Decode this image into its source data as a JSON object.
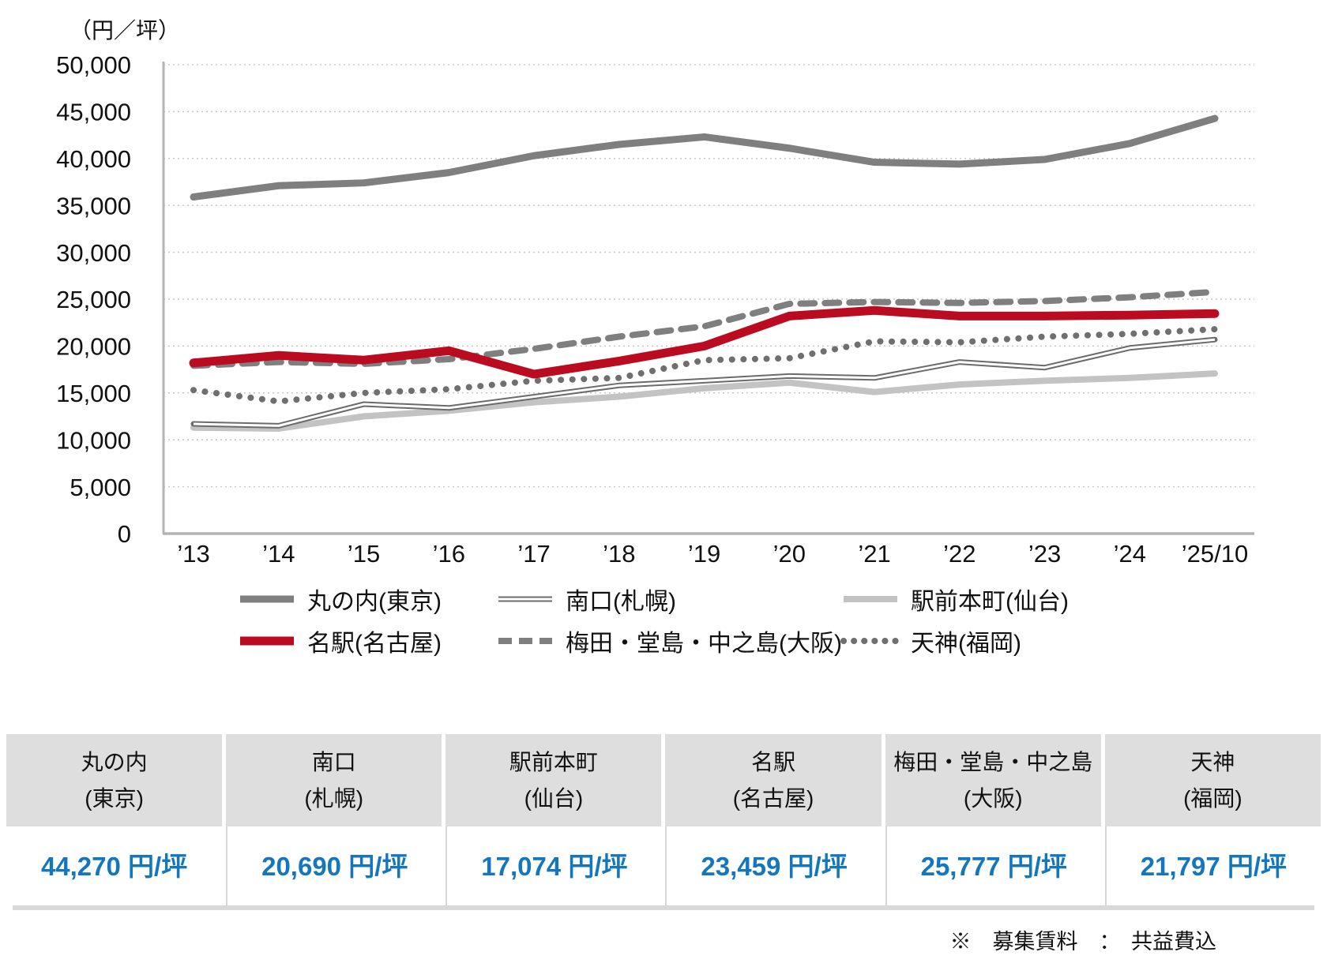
{
  "chart_data": {
    "type": "line",
    "unit_label": "（円／坪）",
    "categories": [
      "’13",
      "’14",
      "’15",
      "’16",
      "’17",
      "’18",
      "’19",
      "’20",
      "’21",
      "’22",
      "’23",
      "’24",
      "’25/10"
    ],
    "ylim": [
      0,
      50000
    ],
    "ytick_step": 5000,
    "ytick_labels": [
      "0",
      "5,000",
      "10,000",
      "15,000",
      "20,000",
      "25,000",
      "30,000",
      "35,000",
      "40,000",
      "45,000",
      "50,000"
    ],
    "grid": "horizontal-dotted",
    "legend_position": "bottom",
    "axis_color": "#b3b3b3",
    "grid_color": "#c9c9c9",
    "series": [
      {
        "name": "丸の内(東京)",
        "style": {
          "line": "solid",
          "width": 9,
          "color": "#7f7f7f"
        },
        "values": [
          35900,
          37100,
          37400,
          38500,
          40300,
          41500,
          42300,
          41100,
          39600,
          39400,
          39900,
          41600,
          44270
        ]
      },
      {
        "name": "南口(札幌)",
        "style": {
          "line": "double",
          "width": 7,
          "color": "#6b6b6b"
        },
        "values": [
          11700,
          11500,
          13800,
          13400,
          14600,
          15800,
          16300,
          16800,
          16600,
          18300,
          17700,
          19800,
          20690
        ]
      },
      {
        "name": "駅前本町(仙台)",
        "style": {
          "line": "solid",
          "width": 8,
          "color": "#c3c3c3"
        },
        "values": [
          11300,
          11200,
          12500,
          13100,
          14000,
          14600,
          15500,
          16100,
          15100,
          15900,
          16300,
          16600,
          17074
        ]
      },
      {
        "name": "名駅(名古屋)",
        "style": {
          "line": "solid",
          "width": 11,
          "color": "#bb0b20"
        },
        "values": [
          18200,
          19000,
          18500,
          19500,
          17000,
          18400,
          20000,
          23200,
          23800,
          23200,
          23200,
          23300,
          23459
        ]
      },
      {
        "name": "梅田・堂島・中之島(大阪)",
        "style": {
          "line": "dashed",
          "width": 8,
          "color": "#7f7f7f"
        },
        "values": [
          17900,
          18300,
          18100,
          18600,
          19700,
          21000,
          22100,
          24500,
          24700,
          24600,
          24800,
          25200,
          25777
        ]
      },
      {
        "name": "天神(福岡)",
        "style": {
          "line": "dotted",
          "width": 8,
          "color": "#6f6f6f"
        },
        "values": [
          15300,
          14100,
          15000,
          15400,
          16300,
          16600,
          18500,
          18700,
          20500,
          20400,
          21000,
          21300,
          21797
        ]
      }
    ],
    "draw_order": [
      2,
      1,
      5,
      4,
      3,
      0
    ],
    "legend_rows": [
      [
        0,
        1,
        2
      ],
      [
        3,
        4,
        5
      ]
    ]
  },
  "table": {
    "columns": [
      {
        "line1": "丸の内",
        "line2": "(東京)",
        "value": "44,270 円/坪"
      },
      {
        "line1": "南口",
        "line2": "(札幌)",
        "value": "20,690 円/坪"
      },
      {
        "line1": "駅前本町",
        "line2": "(仙台)",
        "value": "17,074 円/坪"
      },
      {
        "line1": "名駅",
        "line2": "(名古屋)",
        "value": "23,459 円/坪"
      },
      {
        "line1": "梅田・堂島・中之島",
        "line2": "(大阪)",
        "value": "25,777 円/坪"
      },
      {
        "line1": "天神",
        "line2": "(福岡)",
        "value": "21,797 円/坪"
      }
    ]
  },
  "footnote": "※　募集賃料　：　共益費込"
}
